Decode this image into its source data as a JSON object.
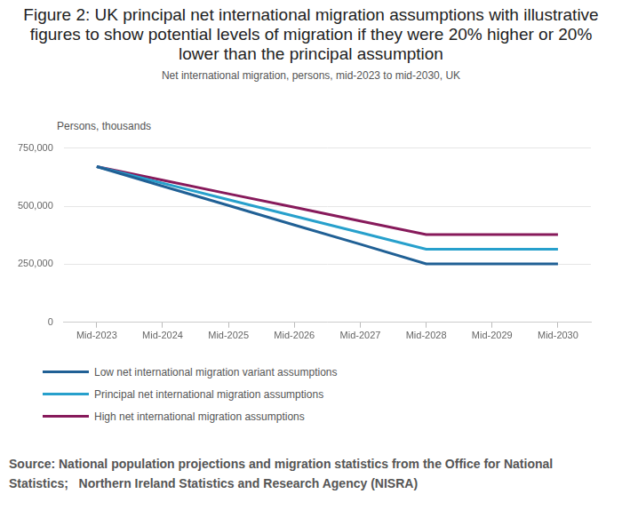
{
  "chart_data": {
    "type": "line",
    "title": "Figure 2: UK principal net international migration assumptions with illustrative figures to show potential levels of migration if they were 20% higher or 20% lower than the principal assumption",
    "subtitle": "Net international migration, persons, mid-2023 to mid-2030, UK",
    "y_label": "Persons, thousands",
    "source": "Source: National population projections and migration statistics from the Office for National Statistics;   Northern Ireland Statistics and Research Agency (NISRA)",
    "categories": [
      "Mid-2023",
      "Mid-2024",
      "Mid-2025",
      "Mid-2026",
      "Mid-2027",
      "Mid-2028",
      "Mid-2029",
      "Mid-2030"
    ],
    "series": [
      {
        "name": "Low net international migration variant assumptions",
        "color": "#206095",
        "values": [
          670000,
          586000,
          503000,
          419000,
          336000,
          252000,
          252000,
          252000
        ]
      },
      {
        "name": "Principal net international migration assumptions",
        "color": "#27a0cc",
        "values": [
          670000,
          599000,
          528000,
          457000,
          386000,
          315000,
          315000,
          315000
        ]
      },
      {
        "name": "High net international migration assumptions",
        "color": "#871a5b",
        "values": [
          670000,
          612000,
          553000,
          495000,
          436000,
          378000,
          378000,
          378000
        ]
      }
    ],
    "ylim": [
      0,
      750000
    ],
    "yticks": [
      0,
      {
        "value": 250000,
        "label": "250,000"
      },
      {
        "value": 500000,
        "label": "500,000"
      },
      {
        "value": 750000,
        "label": "750,000"
      }
    ],
    "grid": true,
    "legend": "bottom"
  }
}
